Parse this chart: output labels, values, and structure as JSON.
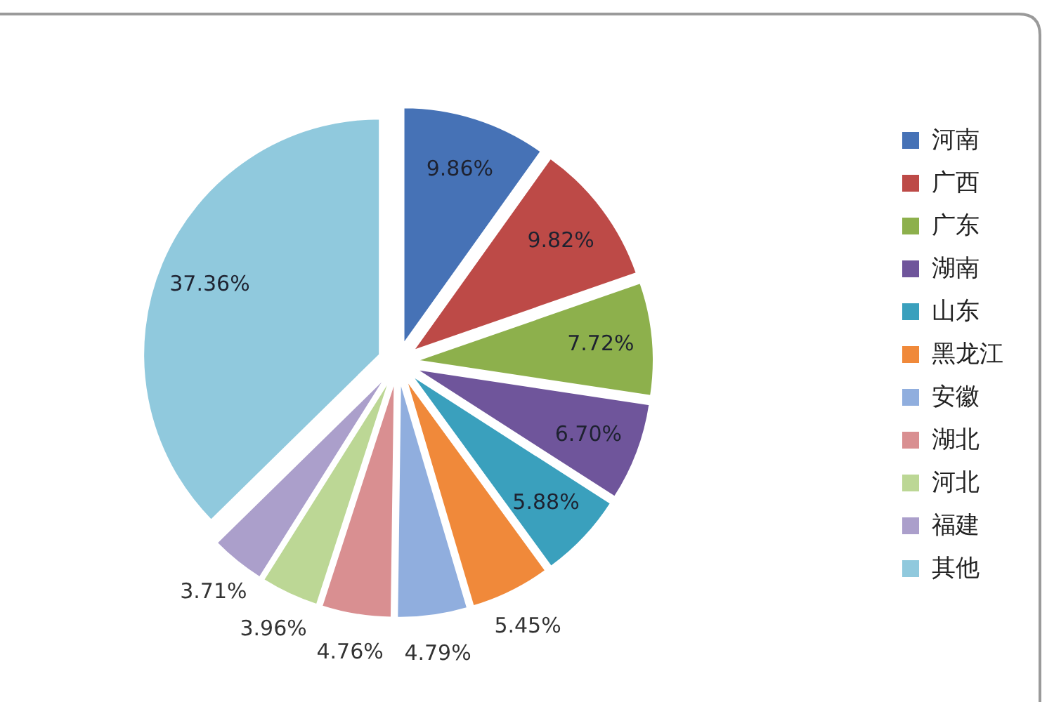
{
  "chart_data": {
    "type": "pie",
    "categories": [
      "河南",
      "广西",
      "广东",
      "湖南",
      "山东",
      "黑龙江",
      "安徽",
      "湖北",
      "河北",
      "福建",
      "其他"
    ],
    "values": [
      9.86,
      9.82,
      7.72,
      6.7,
      5.88,
      5.45,
      4.79,
      4.76,
      3.96,
      3.71,
      37.36
    ],
    "colors": [
      "#4672b6",
      "#bd4a47",
      "#8db04c",
      "#6f559b",
      "#3aa0bd",
      "#f0893a",
      "#90aede",
      "#d98f91",
      "#bcd795",
      "#ab9fcb",
      "#90c9dd"
    ],
    "value_labels": [
      "9.86%",
      "9.82%",
      "7.72%",
      "6.70%",
      "5.88%",
      "5.45%",
      "4.79%",
      "4.76%",
      "3.96%",
      "3.71%",
      "37.36%"
    ],
    "legend": "right"
  }
}
